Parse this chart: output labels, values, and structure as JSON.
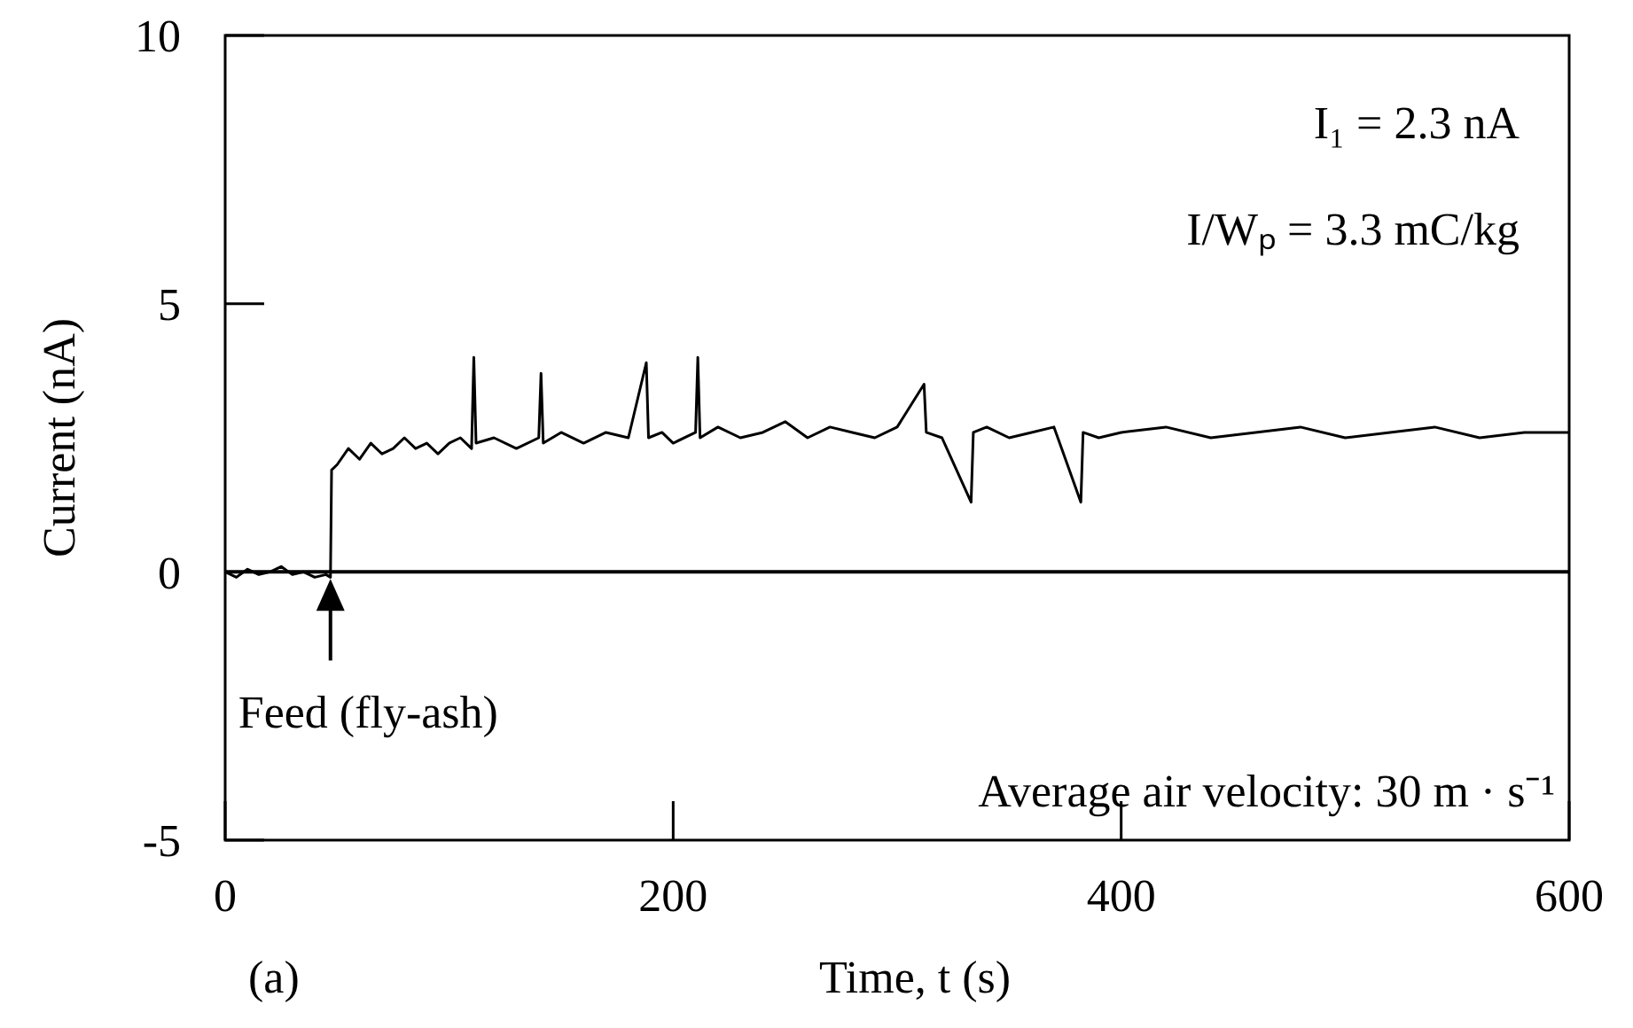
{
  "chart_data": {
    "type": "line",
    "xlabel": "Time, t  (s)",
    "ylabel": "Current  (nA)",
    "xlim": [
      0,
      600
    ],
    "xticks": [
      0,
      200,
      400,
      600
    ],
    "ylim": [
      -5,
      10
    ],
    "yticks": [
      -5,
      0,
      5,
      10
    ],
    "grid": false,
    "marker": "none",
    "line_style": "solid",
    "ref_lines": [
      {
        "axis": "y",
        "value": 0,
        "color": "#000000"
      }
    ],
    "annotations": [
      "I₁ = 2.3 nA",
      "I/Wₚ = 3.3 mC/kg",
      {
        "text": "Feed (fly-ash)",
        "x": 47,
        "y": 0
      },
      "Average air velocity: 30 m · s⁻¹",
      "(a)"
    ],
    "series": [
      {
        "color": "#000000",
        "x": [
          0,
          5,
          10,
          15,
          20,
          25,
          30,
          35,
          40,
          45,
          47,
          47.5,
          50,
          55,
          60,
          65,
          70,
          75,
          80,
          85,
          90,
          95,
          100,
          105,
          110,
          111,
          112,
          120,
          130,
          140,
          141,
          142,
          150,
          160,
          170,
          180,
          188,
          189,
          195,
          200,
          210,
          211,
          212,
          220,
          230,
          240,
          250,
          260,
          270,
          280,
          290,
          300,
          312,
          313,
          320,
          333,
          334,
          340,
          350,
          360,
          370,
          382,
          383,
          390,
          400,
          420,
          440,
          460,
          480,
          500,
          520,
          540,
          560,
          580,
          600
        ],
        "values": [
          0,
          -0.1,
          0.05,
          -0.05,
          0,
          0.1,
          -0.05,
          0,
          -0.1,
          -0.05,
          -0.1,
          1.9,
          2.0,
          2.3,
          2.1,
          2.4,
          2.2,
          2.3,
          2.5,
          2.3,
          2.4,
          2.2,
          2.4,
          2.5,
          2.3,
          4.0,
          2.4,
          2.5,
          2.3,
          2.5,
          3.7,
          2.4,
          2.6,
          2.4,
          2.6,
          2.5,
          3.9,
          2.5,
          2.6,
          2.4,
          2.6,
          4.0,
          2.5,
          2.7,
          2.5,
          2.6,
          2.8,
          2.5,
          2.7,
          2.6,
          2.5,
          2.7,
          3.5,
          2.6,
          2.5,
          1.3,
          2.6,
          2.7,
          2.5,
          2.6,
          2.7,
          1.3,
          2.6,
          2.5,
          2.6,
          2.7,
          2.5,
          2.6,
          2.7,
          2.5,
          2.6,
          2.7,
          2.5,
          2.6,
          2.6
        ]
      }
    ]
  }
}
